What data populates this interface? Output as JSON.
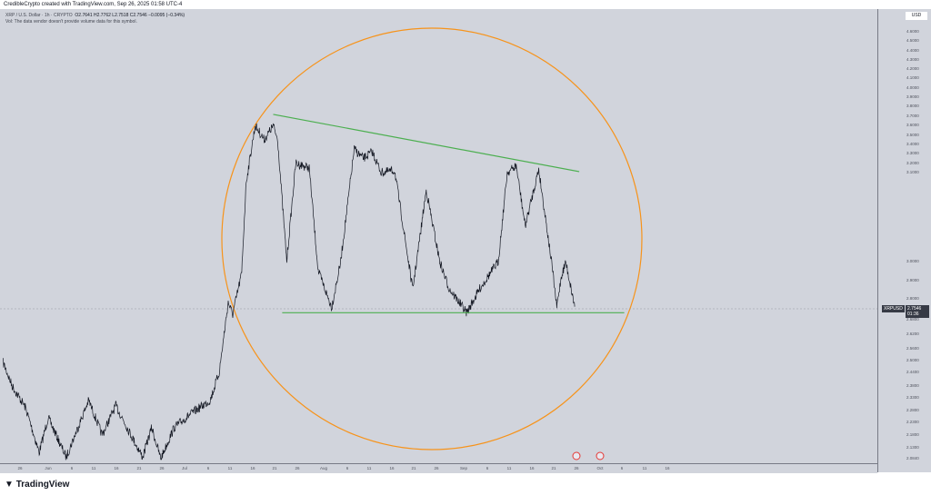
{
  "header": {
    "caption": "CredibleCrypto created with TradingView.com, Sep 26, 2025 01:58 UTC-4"
  },
  "legend": {
    "symbol": "XRP / U.S. Dollar · 1h · CRYPTO",
    "o": "O2.7641",
    "h": "H2.7762",
    "l": "L2.7518",
    "c": "C2.7546",
    "chg": "−0.0095 (−0.34%)",
    "vol_note": "Vol: The data vendor doesn't provide volume data for this symbol."
  },
  "price_axis": {
    "currency": "USD",
    "labels": [
      "4.6000",
      "4.5000",
      "4.4000",
      "4.3000",
      "4.2000",
      "4.1000",
      "4.0000",
      "3.9000",
      "3.8000",
      "3.7000",
      "3.6000",
      "3.5000",
      "3.4000",
      "3.3000",
      "3.2000",
      "3.1000",
      "3.0000",
      "2.9000",
      "2.8000",
      "2.6800",
      "2.6200",
      "2.5600",
      "2.5000",
      "2.4400",
      "2.3800",
      "2.3300",
      "2.2800",
      "2.2300",
      "2.1800",
      "2.1300",
      "2.0840"
    ],
    "symbol_tag": "XRPUSD",
    "last_price": "2.7546",
    "countdown": "01:36"
  },
  "time_axis": {
    "labels": [
      "26",
      "Jun",
      "6",
      "11",
      "16",
      "21",
      "26",
      "Jul",
      "6",
      "11",
      "16",
      "21",
      "26",
      "Aug",
      "6",
      "11",
      "16",
      "21",
      "26",
      "Sep",
      "6",
      "11",
      "16",
      "21",
      "26",
      "Oct",
      "6",
      "11",
      "16"
    ]
  },
  "footer": {
    "brand": "TradingView"
  },
  "colors": {
    "background": "#d1d4dc",
    "price": "#131722",
    "trendline": "#4caf50",
    "circle": "#f7931a",
    "tag": "#363a45"
  },
  "chart_data": {
    "type": "line",
    "title": "XRP / U.S. Dollar · 1h · CRYPTO",
    "grid": false,
    "yscale": "price (non-linear labels)",
    "ylim": [
      2.084,
      4.6
    ],
    "series": [
      {
        "values": [
          [
            "2025-05-22",
            2.49
          ],
          [
            "2025-05-24",
            2.38
          ],
          [
            "2025-05-27",
            2.29
          ],
          [
            "2025-05-30",
            2.11
          ],
          [
            "2025-06-01",
            2.25
          ],
          [
            "2025-06-05",
            2.09
          ],
          [
            "2025-06-10",
            2.32
          ],
          [
            "2025-06-13",
            2.18
          ],
          [
            "2025-06-16",
            2.3
          ],
          [
            "2025-06-20",
            2.16
          ],
          [
            "2025-06-22",
            2.09
          ],
          [
            "2025-06-24",
            2.21
          ],
          [
            "2025-06-26",
            2.08
          ],
          [
            "2025-06-29",
            2.21
          ],
          [
            "2025-07-03",
            2.27
          ],
          [
            "2025-07-07",
            2.32
          ],
          [
            "2025-07-09",
            2.44
          ],
          [
            "2025-07-11",
            2.78
          ],
          [
            "2025-07-12",
            2.71
          ],
          [
            "2025-07-14",
            2.94
          ],
          [
            "2025-07-15",
            3.09
          ],
          [
            "2025-07-17",
            3.6
          ],
          [
            "2025-07-19",
            3.45
          ],
          [
            "2025-07-21",
            3.6
          ],
          [
            "2025-07-22",
            3.45
          ],
          [
            "2025-07-24",
            3.0
          ],
          [
            "2025-07-26",
            3.2
          ],
          [
            "2025-07-29",
            3.15
          ],
          [
            "2025-07-31",
            2.95
          ],
          [
            "2025-08-03",
            2.75
          ],
          [
            "2025-08-05",
            3.0
          ],
          [
            "2025-08-08",
            3.35
          ],
          [
            "2025-08-10",
            3.25
          ],
          [
            "2025-08-12",
            3.32
          ],
          [
            "2025-08-14",
            3.1
          ],
          [
            "2025-08-17",
            3.12
          ],
          [
            "2025-08-21",
            2.85
          ],
          [
            "2025-08-24",
            3.08
          ],
          [
            "2025-08-27",
            3.0
          ],
          [
            "2025-08-29",
            2.86
          ],
          [
            "2025-09-02",
            2.72
          ],
          [
            "2025-09-05",
            2.86
          ],
          [
            "2025-09-09",
            3.0
          ],
          [
            "2025-09-11",
            3.1
          ],
          [
            "2025-09-13",
            3.17
          ],
          [
            "2025-09-15",
            3.04
          ],
          [
            "2025-09-18",
            3.14
          ],
          [
            "2025-09-21",
            2.97
          ],
          [
            "2025-09-22",
            2.75
          ],
          [
            "2025-09-23",
            2.92
          ],
          [
            "2025-09-24",
            3.0
          ],
          [
            "2025-09-26",
            2.7546
          ]
        ]
      }
    ],
    "trendlines": [
      {
        "from": [
          "2025-07-21",
          3.72
        ],
        "to": [
          "2025-09-27",
          3.11
        ]
      },
      {
        "from": [
          "2025-07-23",
          2.72
        ],
        "to": [
          "2025-10-07",
          2.72
        ]
      }
    ]
  }
}
